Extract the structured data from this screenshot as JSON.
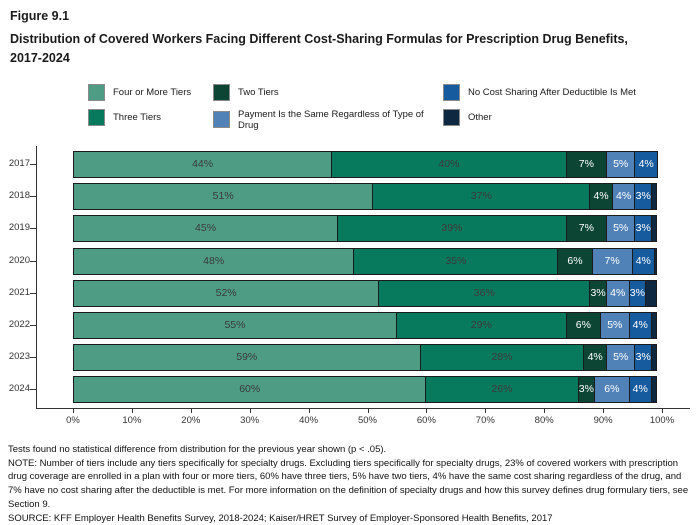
{
  "header": {
    "figure_label": "Figure 9.1",
    "title": "Distribution of Covered Workers Facing Different Cost-Sharing Formulas for Prescription Drug Benefits, 2017-2024"
  },
  "chart_data": {
    "type": "bar",
    "orientation": "horizontal_stacked",
    "title": "Distribution of Covered Workers Facing Different Cost-Sharing Formulas for Prescription Drug Benefits, 2017-2024",
    "categories": [
      "2017",
      "2018",
      "2019",
      "2020",
      "2021",
      "2022",
      "2023",
      "2024"
    ],
    "series": [
      {
        "name": "Four or More Tiers",
        "color": "#4E9C84",
        "label_color": "#3a3a3a",
        "values": [
          44,
          51,
          45,
          48,
          52,
          55,
          59,
          60
        ]
      },
      {
        "name": "Three Tiers",
        "color": "#077A5E",
        "label_color": "#3a3a3a",
        "values": [
          40,
          37,
          39,
          35,
          36,
          29,
          28,
          26
        ]
      },
      {
        "name": "Two Tiers",
        "color": "#0C4534",
        "label_color": "#ffffff",
        "values": [
          7,
          4,
          7,
          6,
          3,
          6,
          4,
          3
        ]
      },
      {
        "name": "Payment Is the Same Regardless of Type of Drug",
        "color": "#5082B8",
        "label_color": "#ffffff",
        "values": [
          5,
          4,
          5,
          7,
          4,
          5,
          5,
          6
        ]
      },
      {
        "name": "No Cost Sharing After Deductible Is Met",
        "color": "#175B9F",
        "label_color": "#ffffff",
        "values": [
          4,
          3,
          3,
          4,
          3,
          4,
          3,
          4
        ]
      },
      {
        "name": "Other",
        "color": "#0D2840",
        "label_color": "#ffffff",
        "labels_hidden": true,
        "values": [
          0,
          1,
          1,
          0.5,
          2,
          1,
          1,
          1
        ]
      }
    ],
    "legend_columns": [
      [
        0,
        1
      ],
      [
        2,
        3
      ],
      [
        4,
        5
      ]
    ],
    "legend_position": "top",
    "x_ticks": [
      "0%",
      "10%",
      "20%",
      "30%",
      "40%",
      "50%",
      "60%",
      "70%",
      "80%",
      "90%",
      "100%"
    ],
    "xlim": [
      0,
      100
    ],
    "grid": false,
    "value_suffix": "%"
  },
  "footnotes": {
    "stat_note": "Tests found no statistical difference from distribution for the previous year shown (p < .05).",
    "note": "NOTE: Number of tiers include any tiers specifically for specialty drugs. Excluding tiers specifically for specialty drugs, 23% of covered workers with prescription drug coverage are enrolled in a plan with four or more tiers, 60% have three tiers, 5% have two tiers, 4% have the same cost sharing regardless of the drug, and 7% have no cost sharing after the deductible is met. For more information on the definition of specialty drugs and how this survey defines drug formulary tiers, see Section 9.",
    "source": "SOURCE: KFF Employer Health Benefits Survey, 2018-2024; Kaiser/HRET Survey of Employer-Sponsored Health Benefits, 2017"
  }
}
